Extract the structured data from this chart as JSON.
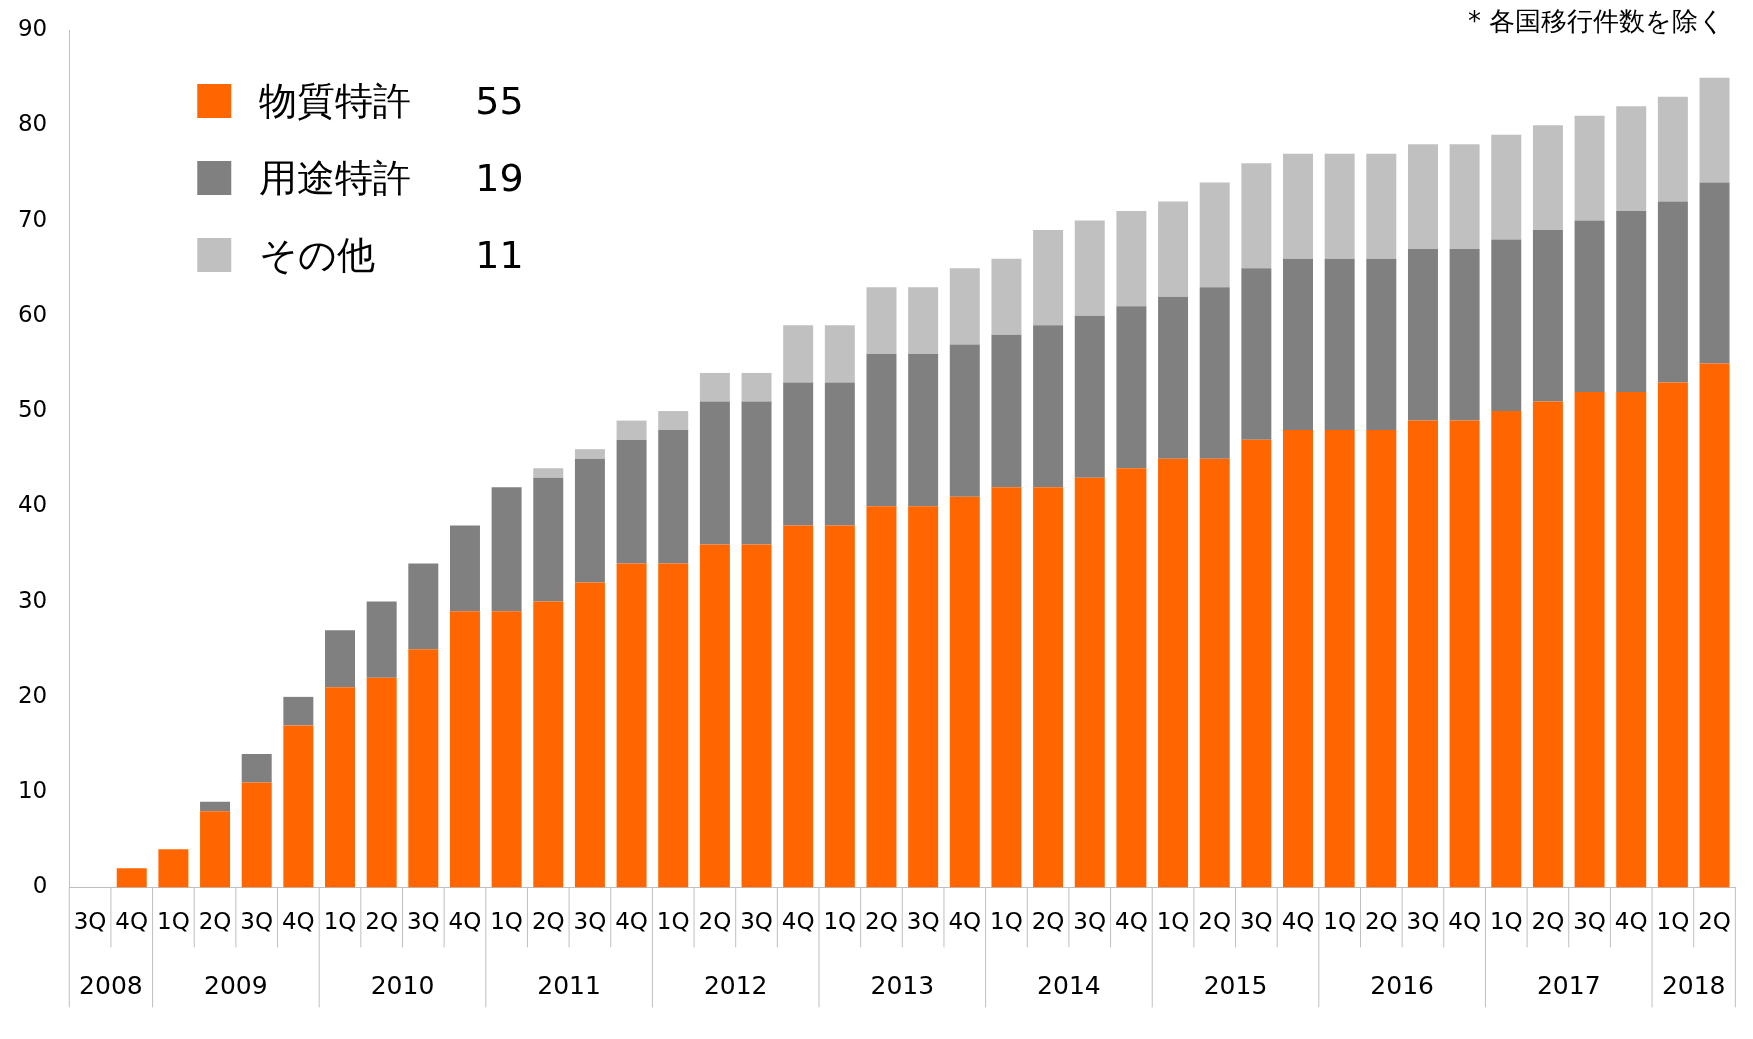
{
  "chart_data": {
    "type": "bar",
    "stacked": true,
    "categories": [
      "3Q",
      "4Q",
      "1Q",
      "2Q",
      "3Q",
      "4Q",
      "1Q",
      "2Q",
      "3Q",
      "4Q",
      "1Q",
      "2Q",
      "3Q",
      "4Q",
      "1Q",
      "2Q",
      "3Q",
      "4Q",
      "1Q",
      "2Q",
      "3Q",
      "4Q",
      "1Q",
      "2Q",
      "3Q",
      "4Q",
      "1Q",
      "2Q",
      "3Q",
      "4Q",
      "1Q",
      "2Q",
      "3Q",
      "4Q",
      "1Q",
      "2Q",
      "3Q",
      "4Q",
      "1Q",
      "2Q"
    ],
    "series": [
      {
        "name": "物質特許",
        "color": "#ff6600",
        "values": [
          0,
          2,
          4,
          8,
          11,
          17,
          21,
          22,
          25,
          29,
          29,
          30,
          32,
          34,
          34,
          36,
          36,
          38,
          38,
          40,
          40,
          41,
          42,
          42,
          43,
          44,
          45,
          45,
          47,
          48,
          48,
          48,
          49,
          49,
          50,
          51,
          52,
          52,
          53,
          55
        ]
      },
      {
        "name": "用途特許",
        "color": "#808080",
        "values": [
          0,
          0,
          0,
          1,
          3,
          3,
          6,
          8,
          9,
          9,
          13,
          13,
          13,
          13,
          14,
          15,
          15,
          15,
          15,
          16,
          16,
          16,
          16,
          17,
          17,
          17,
          17,
          18,
          18,
          18,
          18,
          18,
          18,
          18,
          18,
          18,
          18,
          19,
          19,
          19
        ]
      },
      {
        "name": "その他",
        "color": "#c0c0c0",
        "values": [
          0,
          0,
          0,
          0,
          0,
          0,
          0,
          0,
          0,
          0,
          0,
          1,
          1,
          2,
          2,
          3,
          3,
          6,
          6,
          7,
          7,
          8,
          8,
          10,
          10,
          10,
          10,
          11,
          11,
          11,
          11,
          11,
          11,
          11,
          11,
          11,
          11,
          11,
          11,
          11
        ]
      }
    ],
    "ylim": [
      0,
      90
    ],
    "yticks": [
      0,
      10,
      20,
      30,
      40,
      50,
      60,
      70,
      80,
      90
    ],
    "grid": false,
    "legend": "top left",
    "annotations": [
      "* 各国移行件数を除く",
      "55",
      "19",
      "11",
      "2008",
      "2009",
      "2010",
      "2011",
      "2012",
      "2013",
      "2014",
      "2015",
      "2016",
      "2017",
      "2018"
    ]
  }
}
